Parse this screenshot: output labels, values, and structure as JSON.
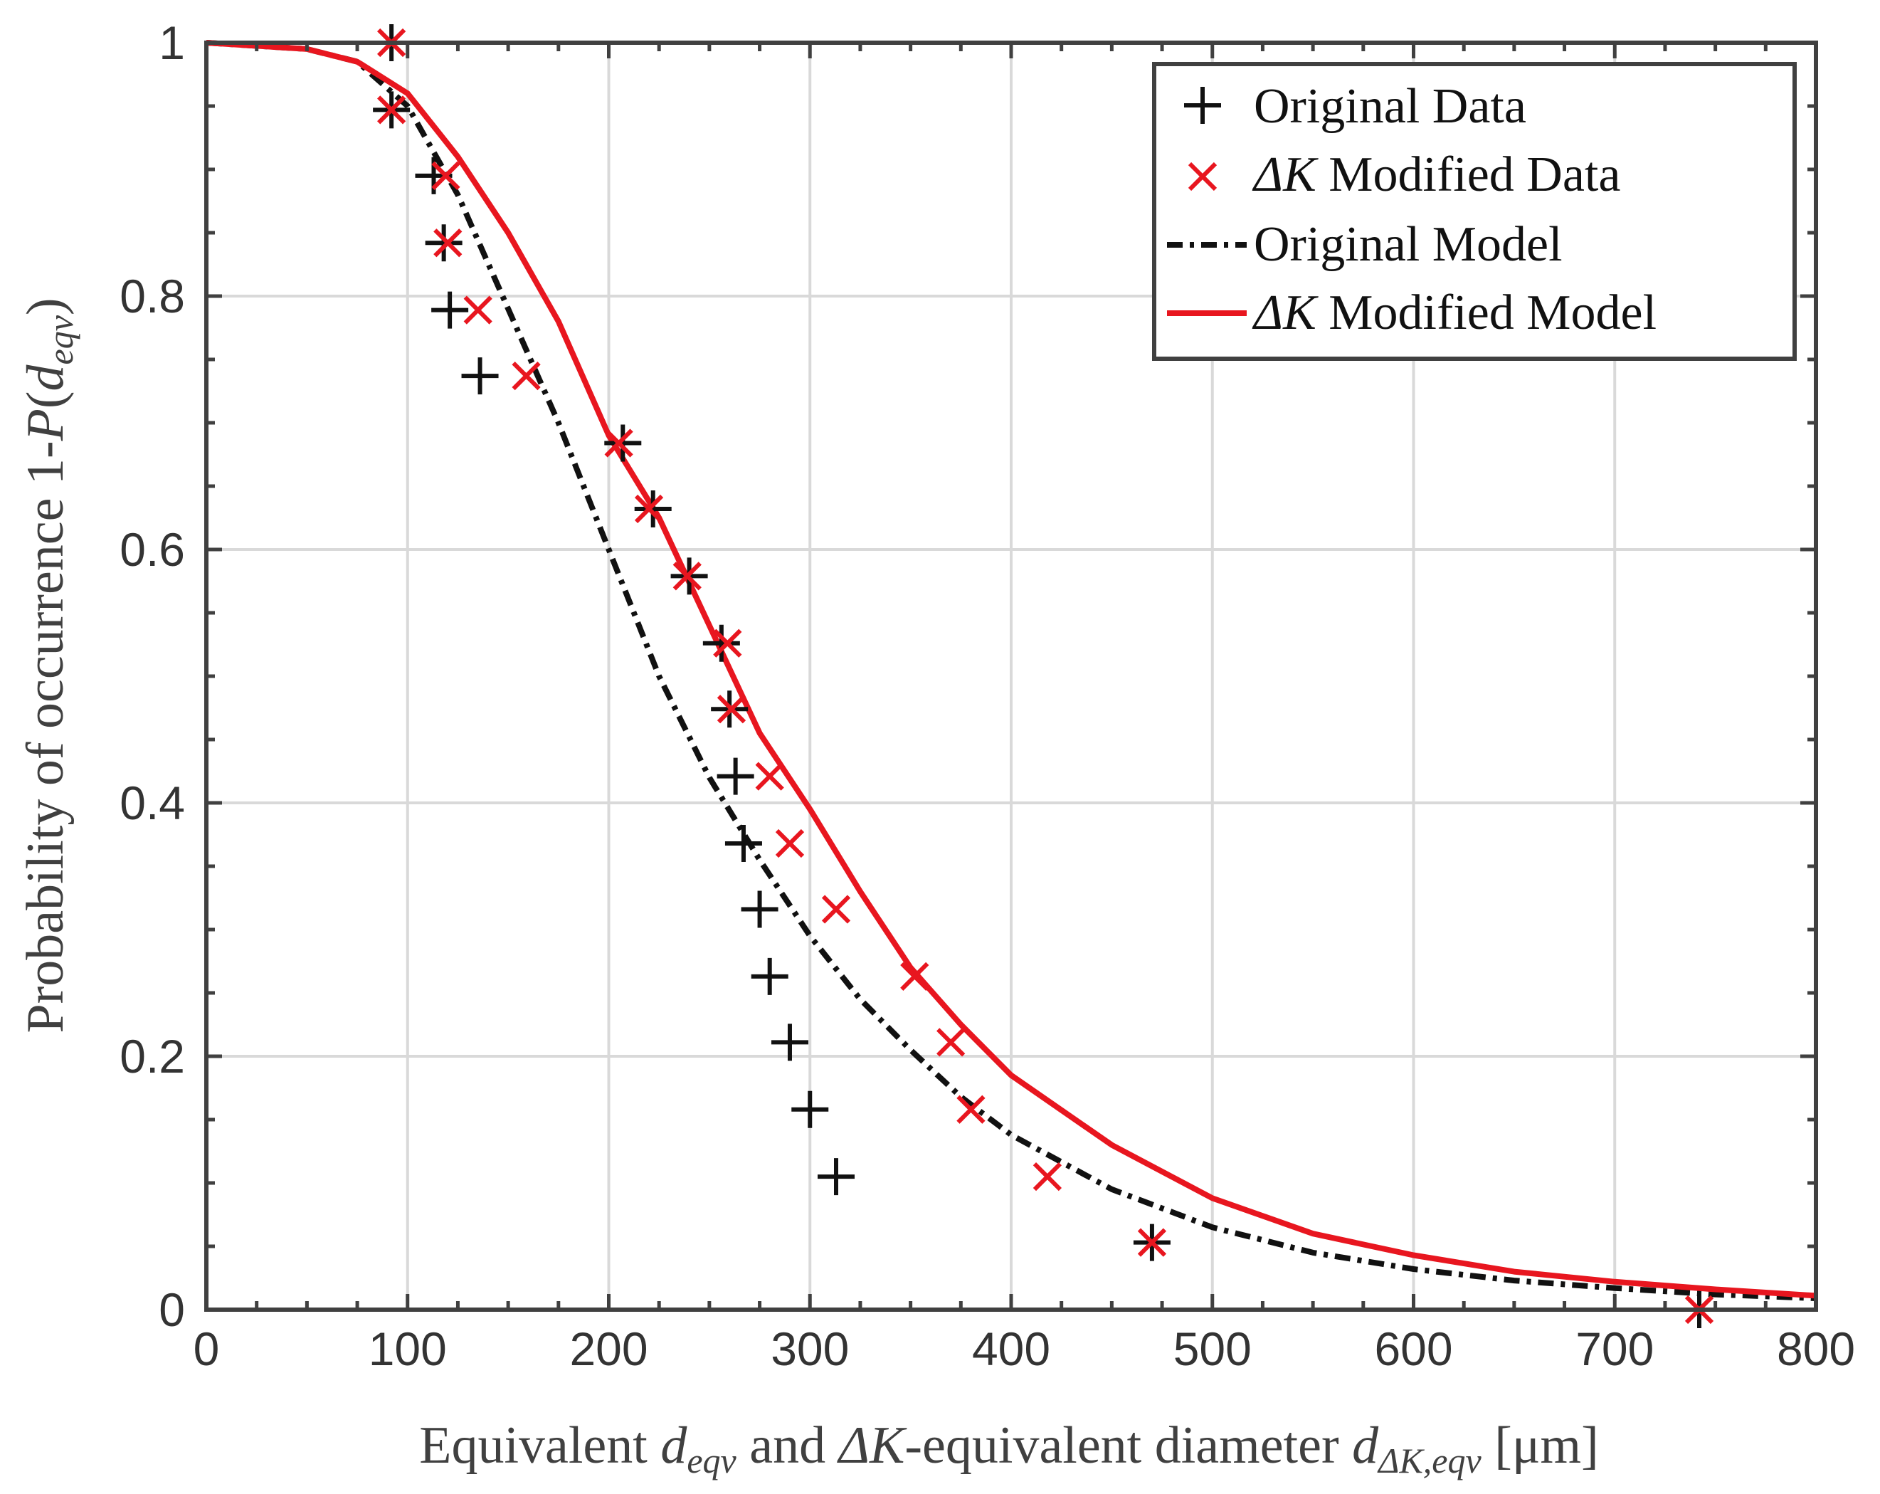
{
  "chart_data": {
    "type": "scatter",
    "title": "",
    "xlabel": "Equivalent d_eqv and ΔK-equivalent diameter d_ΔK,eqv [μm]",
    "xlabel_parts": {
      "p1": "Equivalent ",
      "d1": "d",
      "s1": "eqv",
      "p2": " and ",
      "dk": "ΔK",
      "p3": "-equivalent diameter ",
      "d2": "d",
      "s2": "ΔK,eqv",
      "p4": " [μm]"
    },
    "ylabel": "Probability of occurrence 1-P(d_eqv)",
    "ylabel_parts": {
      "p1": "Probability of occurrence 1-",
      "P": "P",
      "open": "(",
      "d": "d",
      "s": "eqv",
      "close": ")"
    },
    "xlim": [
      0,
      800
    ],
    "ylim": [
      0,
      1
    ],
    "xticks": [
      0,
      100,
      200,
      300,
      400,
      500,
      600,
      700,
      800
    ],
    "yticks": [
      0,
      0.2,
      0.4,
      0.6,
      0.8,
      1
    ],
    "xtick_labels": [
      "0",
      "100",
      "200",
      "300",
      "400",
      "500",
      "600",
      "700",
      "800"
    ],
    "ytick_labels": [
      "0",
      "0.2",
      "0.4",
      "0.6",
      "0.8",
      "1"
    ],
    "grid": true,
    "legend_position": "top-right",
    "legend": {
      "original_data": "Original Data",
      "modified_data_delta": "ΔK",
      "modified_data_rest": " Modified Data",
      "original_model": "Original Model",
      "modified_model_delta": "ΔK",
      "modified_model_rest": " Modified Model"
    },
    "colors": {
      "original": "#111111",
      "modified": "#e8161f",
      "grid": "#d9d9d9",
      "axis": "#404040"
    },
    "series": [
      {
        "name": "Original Data",
        "marker": "plus",
        "x": [
          92,
          92,
          113,
          118,
          121,
          136,
          207,
          222,
          240,
          256,
          260,
          263,
          267,
          275,
          280,
          290,
          300,
          313,
          470,
          742
        ],
        "y": [
          1.0,
          0.947,
          0.895,
          0.842,
          0.789,
          0.737,
          0.684,
          0.632,
          0.579,
          0.526,
          0.474,
          0.421,
          0.368,
          0.316,
          0.263,
          0.211,
          0.158,
          0.105,
          0.053,
          0.0
        ]
      },
      {
        "name": "ΔK Modified Data",
        "marker": "x",
        "x": [
          92,
          92,
          119,
          120,
          135,
          159,
          205,
          220,
          239,
          259,
          261,
          280,
          290,
          313,
          352,
          370,
          380,
          418,
          470,
          742
        ],
        "y": [
          1.0,
          0.947,
          0.895,
          0.842,
          0.789,
          0.737,
          0.684,
          0.632,
          0.579,
          0.526,
          0.474,
          0.421,
          0.368,
          0.316,
          0.263,
          0.211,
          0.158,
          0.105,
          0.053,
          0.0
        ]
      },
      {
        "name": "Original Model",
        "style": "dash-dot",
        "x": [
          0,
          50,
          75,
          100,
          125,
          150,
          175,
          200,
          225,
          250,
          275,
          300,
          325,
          350,
          375,
          400,
          450,
          500,
          550,
          600,
          650,
          700,
          750,
          800
        ],
        "y": [
          1.0,
          0.995,
          0.985,
          0.95,
          0.88,
          0.79,
          0.7,
          0.6,
          0.5,
          0.42,
          0.355,
          0.295,
          0.245,
          0.205,
          0.168,
          0.138,
          0.095,
          0.065,
          0.045,
          0.032,
          0.023,
          0.017,
          0.012,
          0.009
        ]
      },
      {
        "name": "ΔK Modified Model",
        "style": "solid",
        "x": [
          0,
          50,
          75,
          100,
          125,
          150,
          175,
          200,
          225,
          250,
          275,
          300,
          325,
          350,
          375,
          400,
          450,
          500,
          550,
          600,
          650,
          700,
          750,
          800
        ],
        "y": [
          1.0,
          0.995,
          0.985,
          0.96,
          0.91,
          0.85,
          0.78,
          0.69,
          0.625,
          0.54,
          0.455,
          0.395,
          0.33,
          0.27,
          0.225,
          0.185,
          0.13,
          0.088,
          0.06,
          0.043,
          0.03,
          0.022,
          0.016,
          0.011
        ]
      }
    ]
  }
}
